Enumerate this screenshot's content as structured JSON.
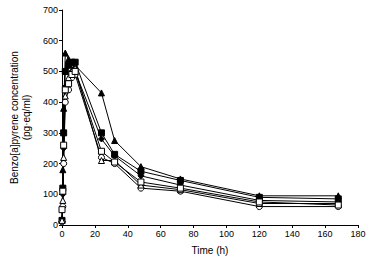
{
  "chart_data": {
    "type": "line",
    "x_label": "Time (h)",
    "y_label": "Benzo[a]pyrene concentration\n(pg·eq/ml)",
    "x": [
      0,
      0.5,
      1,
      2,
      4,
      6,
      8,
      24,
      32,
      48,
      72,
      120,
      168
    ],
    "series": [
      {
        "color": "#000000",
        "marker": "triangle",
        "values": [
          20,
          180,
          380,
          560,
          540,
          530,
          520,
          430,
          275,
          190,
          150,
          95,
          95
        ]
      },
      {
        "color": "#000000",
        "marker": "square",
        "values": [
          15,
          120,
          300,
          500,
          520,
          530,
          530,
          300,
          230,
          175,
          145,
          90,
          85
        ]
      },
      {
        "color": "#000000",
        "marker": "diamond",
        "values": [
          10,
          100,
          250,
          450,
          470,
          500,
          500,
          280,
          225,
          160,
          130,
          80,
          75
        ]
      },
      {
        "color": "#000000",
        "marker": "circle-open",
        "values": [
          10,
          60,
          200,
          400,
          440,
          480,
          490,
          220,
          200,
          120,
          110,
          60,
          60
        ]
      },
      {
        "color": "#000000",
        "marker": "triangle-open",
        "values": [
          15,
          80,
          220,
          420,
          480,
          500,
          510,
          210,
          210,
          130,
          115,
          70,
          70
        ]
      },
      {
        "color": "#000000",
        "marker": "square-open",
        "values": [
          50,
          110,
          260,
          440,
          460,
          490,
          500,
          240,
          205,
          140,
          120,
          75,
          65
        ]
      }
    ],
    "xlim": [
      0,
      180
    ],
    "xticks": [
      0,
      20,
      40,
      60,
      80,
      100,
      120,
      140,
      160,
      180
    ],
    "ylim": [
      0,
      700
    ],
    "yticks": [
      0,
      100,
      200,
      300,
      400,
      500,
      600,
      700
    ],
    "grid": false
  }
}
